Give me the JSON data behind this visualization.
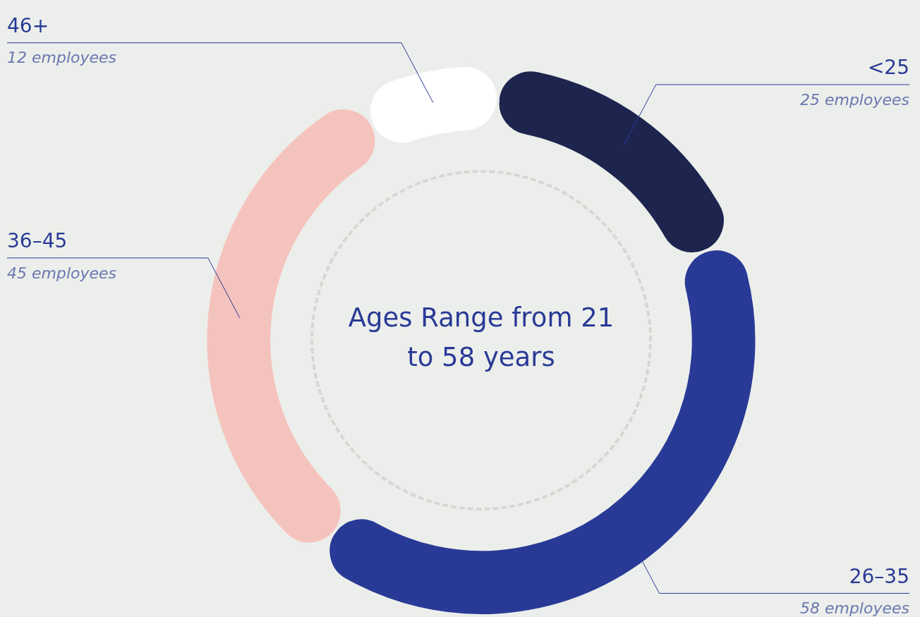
{
  "chart_data": {
    "type": "donut",
    "title": "Ages Range from 21 to 58 years",
    "categories": [
      "<25",
      "26–35",
      "36–45",
      "46+"
    ],
    "values": [
      25,
      58,
      45,
      12
    ],
    "colors": [
      "#1d254f",
      "#293a96",
      "#f5c3bd",
      "#ffffff"
    ],
    "value_labels": [
      "25 employees",
      "58 employees",
      "45 employees",
      "12 employees"
    ],
    "legend": false
  }
}
